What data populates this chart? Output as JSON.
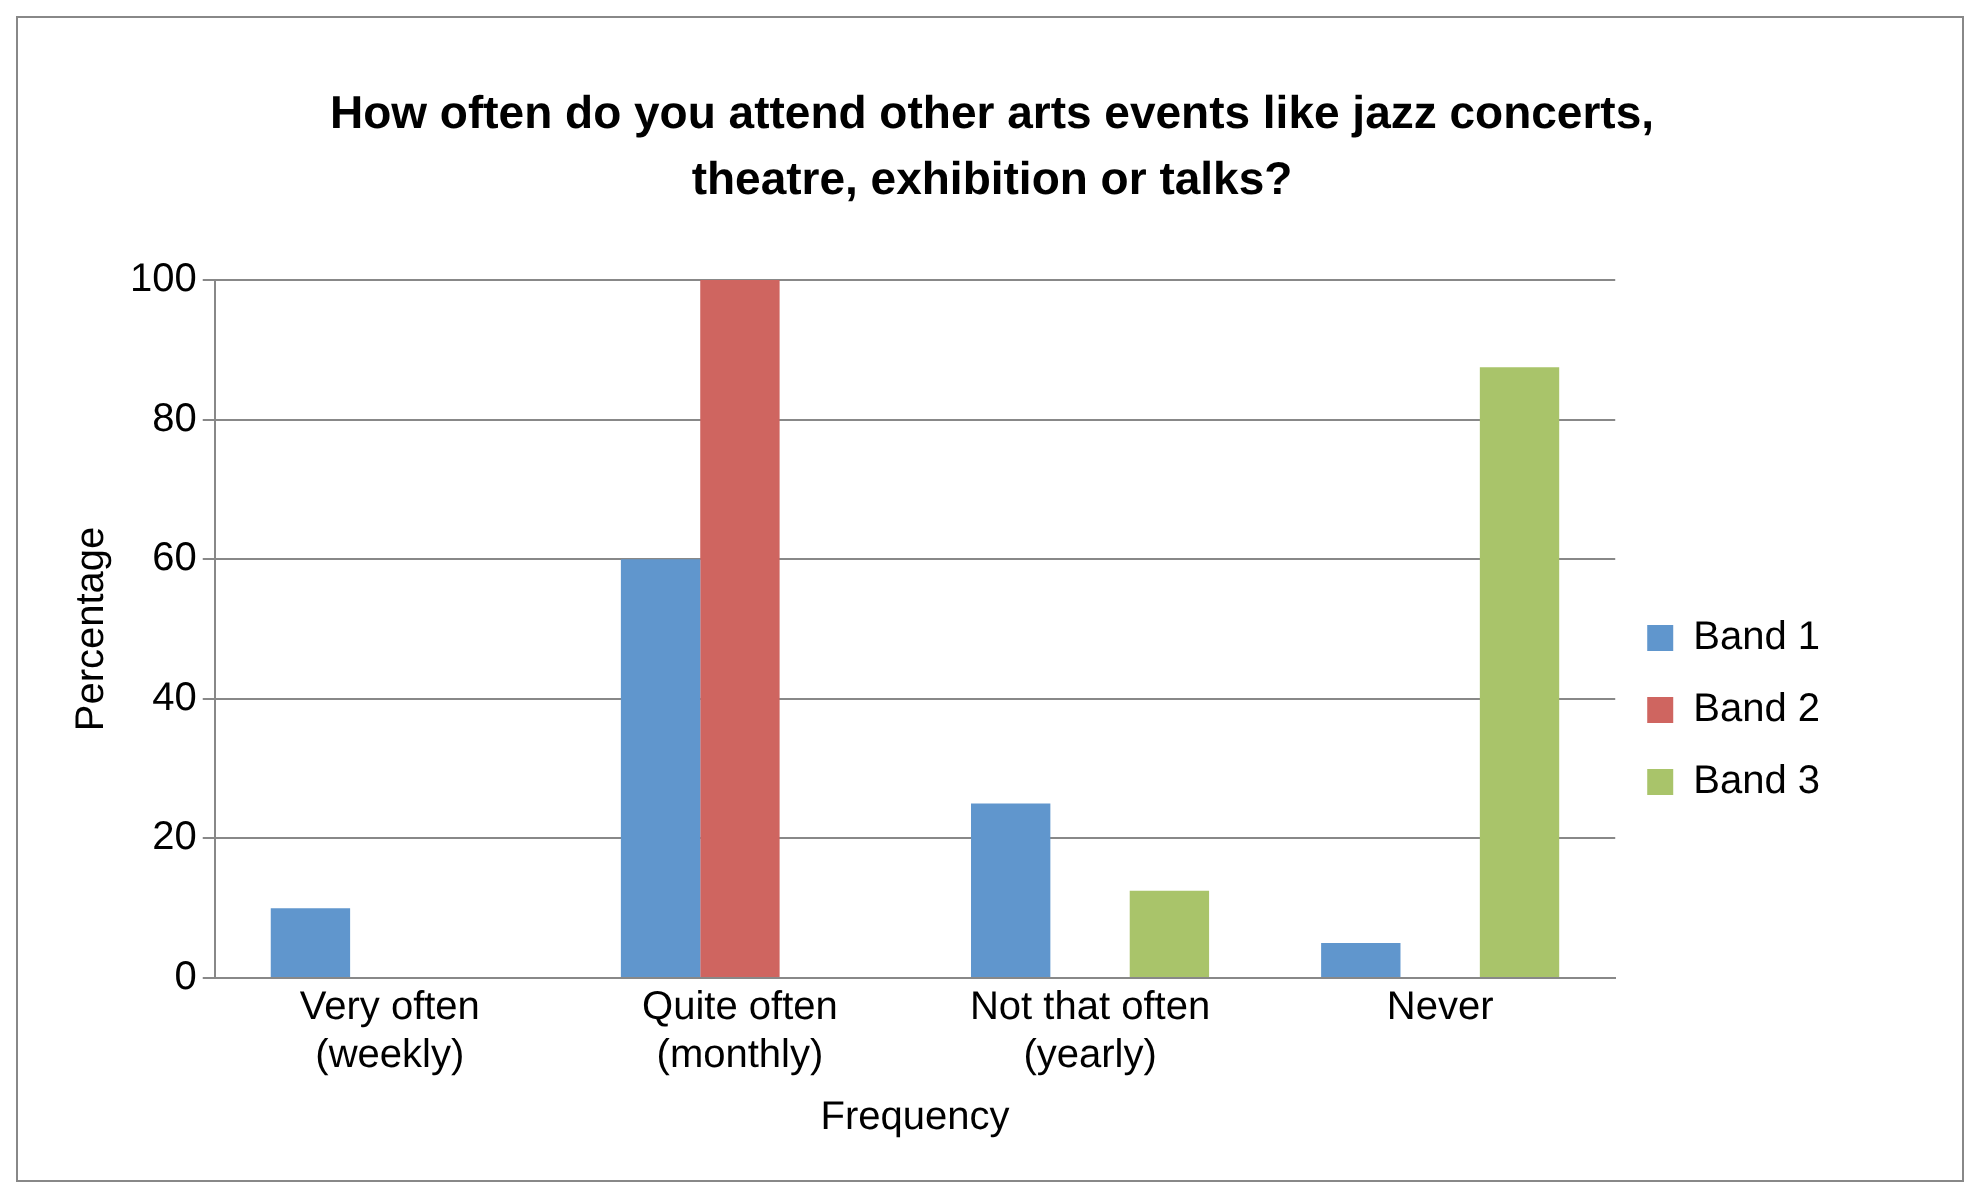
{
  "chart_data": {
    "type": "bar",
    "title": "How often do you attend other arts events like jazz concerts, theatre, exhibition or talks?",
    "xlabel": "Frequency",
    "ylabel": "Percentage",
    "categories": [
      "Very often (weekly)",
      "Quite often (monthly)",
      "Not that often (yearly)",
      "Never"
    ],
    "series": [
      {
        "name": "Band 1",
        "color": "#6096cd",
        "values": [
          10,
          60,
          25,
          5
        ]
      },
      {
        "name": "Band 2",
        "color": "#cf6560",
        "values": [
          0,
          100,
          0,
          0
        ]
      },
      {
        "name": "Band 3",
        "color": "#a9c46a",
        "values": [
          0,
          0,
          12.5,
          87.5
        ]
      }
    ],
    "ylim": [
      0,
      100
    ],
    "yticks": [
      0,
      20,
      40,
      60,
      80,
      100
    ],
    "grid": "y",
    "legend": "right"
  }
}
